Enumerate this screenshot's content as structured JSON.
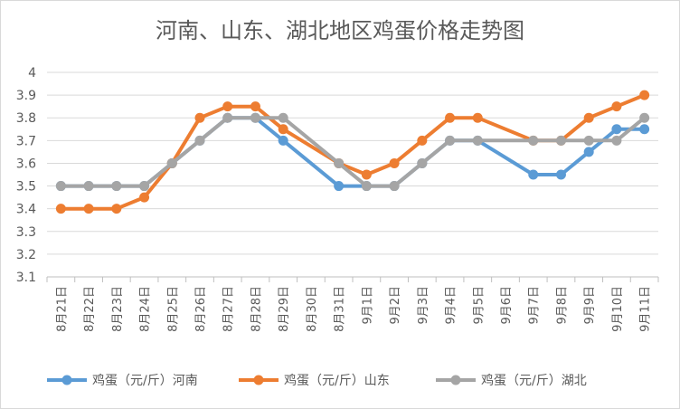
{
  "chart_data": {
    "type": "line",
    "title": "河南、山东、湖北地区鸡蛋价格走势图",
    "categories": [
      "8月21日",
      "8月22日",
      "8月23日",
      "8月24日",
      "8月25日",
      "8月26日",
      "8月27日",
      "8月28日",
      "8月29日",
      "8月30日",
      "8月31日",
      "9月1日",
      "9月2日",
      "9月3日",
      "9月4日",
      "9月5日",
      "9月6日",
      "9月7日",
      "9月8日",
      "9月9日",
      "9月10日",
      "9月11日"
    ],
    "ylim": [
      3.1,
      4
    ],
    "yticks": [
      "3.1",
      "3.2",
      "3.3",
      "3.4",
      "3.5",
      "3.6",
      "3.7",
      "3.8",
      "3.9",
      "4"
    ],
    "grid": "horizontal",
    "legend_position": "bottom",
    "series": [
      {
        "name": "鸡蛋（元/斤）河南",
        "color": "#5b9bd5",
        "values": [
          3.5,
          3.5,
          3.5,
          3.5,
          3.6,
          3.7,
          3.8,
          3.8,
          3.7,
          null,
          3.5,
          3.5,
          3.5,
          3.6,
          3.7,
          3.7,
          null,
          3.55,
          3.55,
          3.65,
          3.75,
          3.75
        ]
      },
      {
        "name": "鸡蛋（元/斤）山东",
        "color": "#ed7d31",
        "values": [
          3.4,
          3.4,
          3.4,
          3.45,
          3.6,
          3.8,
          3.85,
          3.85,
          3.75,
          null,
          3.6,
          3.55,
          3.6,
          3.7,
          3.8,
          3.8,
          null,
          3.7,
          3.7,
          3.8,
          3.85,
          3.9
        ]
      },
      {
        "name": "鸡蛋（元/斤）湖北",
        "color": "#a5a5a5",
        "values": [
          3.5,
          3.5,
          3.5,
          3.5,
          3.6,
          3.7,
          3.8,
          3.8,
          3.8,
          null,
          3.6,
          3.5,
          3.5,
          3.6,
          3.7,
          3.7,
          null,
          3.7,
          3.7,
          3.7,
          3.7,
          3.8
        ]
      }
    ]
  }
}
